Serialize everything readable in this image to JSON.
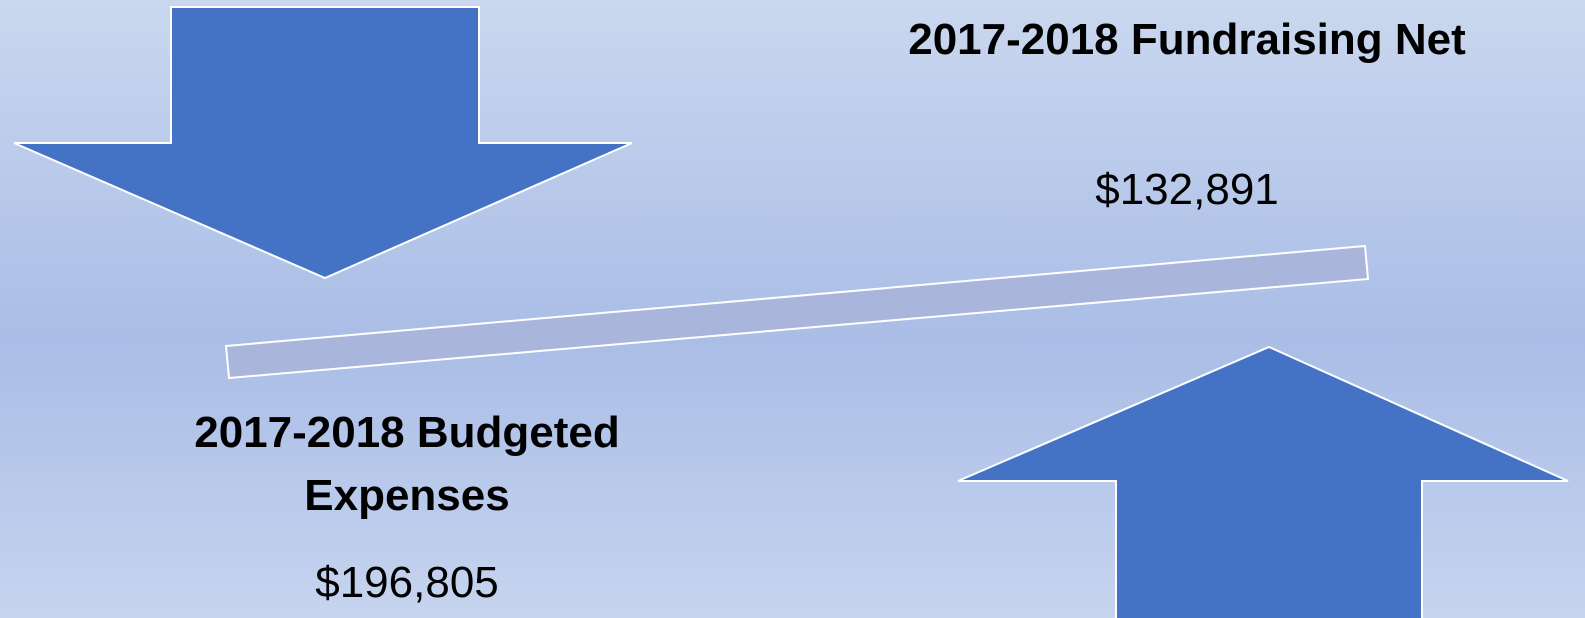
{
  "budget": {
    "title": "2017-2018 Budgeted Expenses",
    "amount": "$196,805"
  },
  "fundraising": {
    "title": "2017-2018 Fundraising Net",
    "amount": "$132,891"
  }
}
